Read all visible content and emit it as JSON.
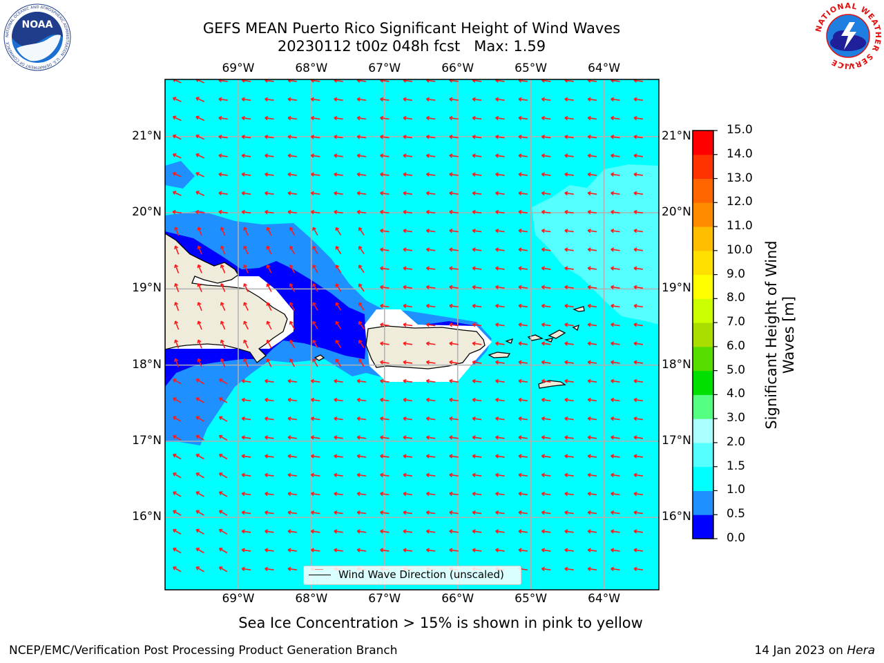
{
  "header": {
    "title_line1": "GEFS MEAN Puerto Rico Significant Height of Wind Waves",
    "title_line2_date": "20230112 t00z 048h fcst",
    "title_line2_max": "Max: 1.59"
  },
  "logos": {
    "noaa_text": "NOAA",
    "noaa_ring_text": "NATIONAL OCEANIC AND ATMOSPHERIC ADMINISTRATION · U.S. DEPARTMENT OF COMMERCE",
    "nws_ring_text": "NATIONAL WEATHER SERVICE"
  },
  "map": {
    "lon_labels": [
      "69°W",
      "68°W",
      "67°W",
      "66°W",
      "65°W",
      "64°W"
    ],
    "lat_labels": [
      "21°N",
      "20°N",
      "19°N",
      "18°N",
      "17°N",
      "16°N"
    ],
    "lon_range": [
      -70,
      -63.25
    ],
    "lat_range": [
      15.05,
      21.75
    ],
    "colors": {
      "ocean_1_1_5": "#00ffff",
      "band_0_5_1": "#1e90ff",
      "band_0_0_5": "#0000ff",
      "band_1_5_2": "#55ffff",
      "land": "#efecdc",
      "no_data": "#ffffff",
      "arrow": "#ff1a1a",
      "grid": "#b0b0b0"
    },
    "legend_label": "Wind Wave Direction (unscaled)"
  },
  "colorbar": {
    "title": "Significant Height of Wind Waves [m]",
    "ticks": [
      "0.0",
      "0.5",
      "1.0",
      "1.5",
      "2.0",
      "3.0",
      "4.0",
      "5.0",
      "6.0",
      "7.0",
      "8.0",
      "9.0",
      "10.0",
      "11.0",
      "12.0",
      "13.0",
      "14.0",
      "15.0"
    ],
    "colors": [
      "#0000ff",
      "#1e90ff",
      "#00ffff",
      "#55ffff",
      "#aaffff",
      "#55ff80",
      "#00e000",
      "#55dd00",
      "#aadd00",
      "#ccff00",
      "#ffff00",
      "#ffe000",
      "#ffbf00",
      "#ff8c00",
      "#ff6600",
      "#ff3300",
      "#ff0000"
    ]
  },
  "footer": {
    "note": "Sea Ice Concentration > 15% is shown in pink to yellow",
    "left": "NCEP/EMC/Verification Post Processing Product Generation Branch",
    "right_date": "14 Jan 2023 on",
    "right_host": "Hera"
  }
}
